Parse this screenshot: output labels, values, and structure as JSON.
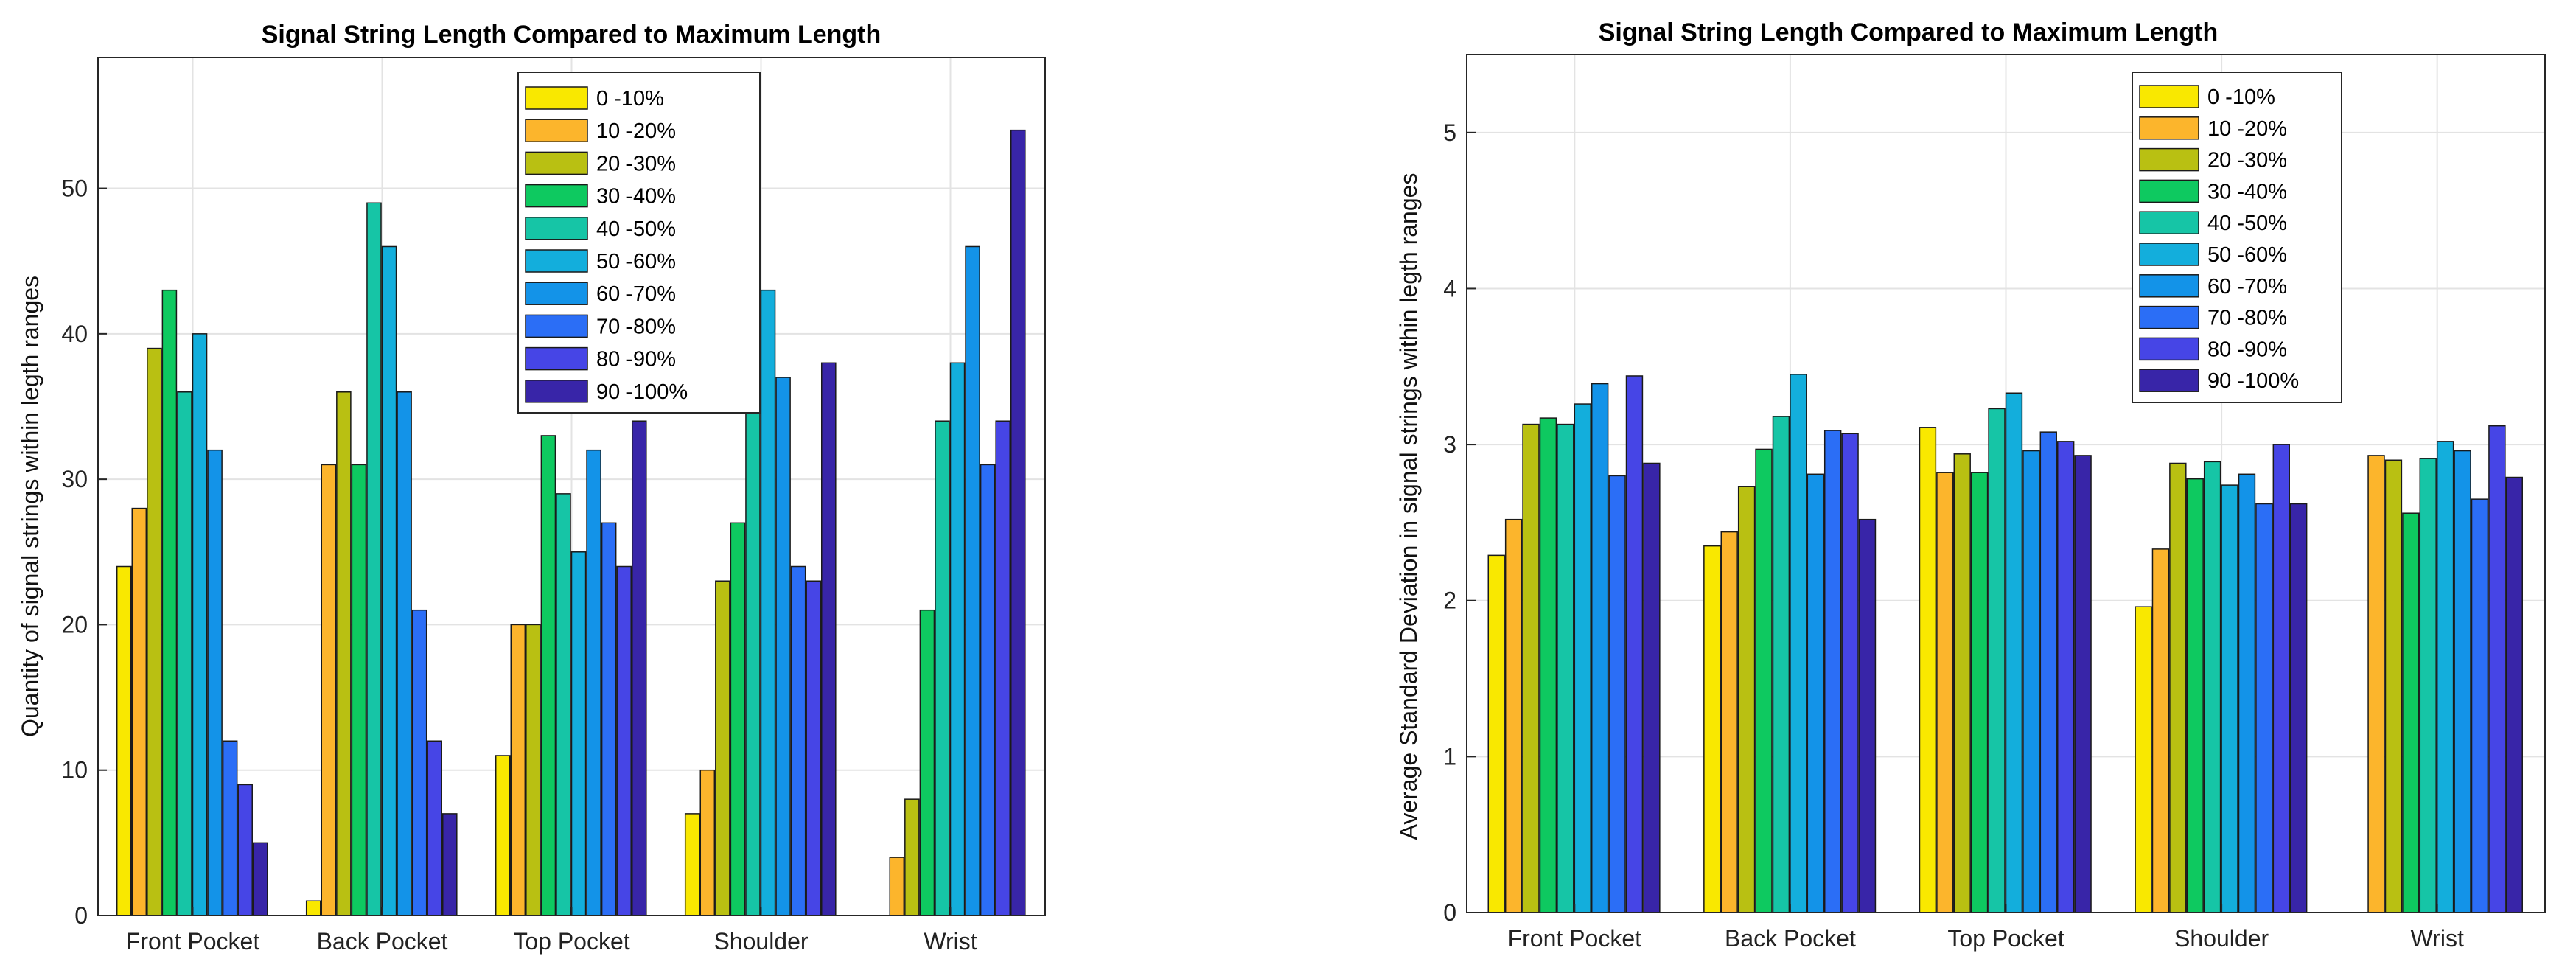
{
  "legend_labels": [
    "0 -10%",
    "10 -20%",
    "20 -30%",
    "30 -40%",
    "40 -50%",
    "50 -60%",
    "60 -70%",
    "70 -80%",
    "80 -90%",
    "90 -100%"
  ],
  "series_colors": [
    "#f9e800",
    "#fcb52c",
    "#b9c012",
    "#0ec960",
    "#16c5a6",
    "#13aedc",
    "#1393e8",
    "#2b6ef6",
    "#4645e6",
    "#3825a8"
  ],
  "chart_data": [
    {
      "type": "bar",
      "title": "Signal String Length Compared to Maximum Length",
      "xlabel": "",
      "ylabel": "Quantity of signal strings within legth ranges",
      "ylim": [
        0,
        59
      ],
      "yticks": [
        0,
        10,
        20,
        30,
        40,
        50
      ],
      "grid": true,
      "legend_position": "top-center",
      "categories": [
        "Front Pocket",
        "Back Pocket",
        "Top Pocket",
        "Shoulder",
        "Wrist"
      ],
      "series": [
        {
          "name": "0 -10%",
          "values": [
            24,
            1,
            11,
            7,
            0
          ]
        },
        {
          "name": "10 -20%",
          "values": [
            28,
            31,
            20,
            10,
            4
          ]
        },
        {
          "name": "20 -30%",
          "values": [
            39,
            36,
            20,
            23,
            8
          ]
        },
        {
          "name": "30 -40%",
          "values": [
            43,
            31,
            33,
            27,
            21
          ]
        },
        {
          "name": "40 -50%",
          "values": [
            36,
            49,
            29,
            38,
            34
          ]
        },
        {
          "name": "50 -60%",
          "values": [
            40,
            46,
            25,
            43,
            38
          ]
        },
        {
          "name": "60 -70%",
          "values": [
            32,
            36,
            32,
            37,
            46
          ]
        },
        {
          "name": "70 -80%",
          "values": [
            12,
            21,
            27,
            24,
            31
          ]
        },
        {
          "name": "80 -90%",
          "values": [
            9,
            12,
            24,
            23,
            34
          ]
        },
        {
          "name": "90 -100%",
          "values": [
            5,
            7,
            34,
            38,
            54
          ]
        }
      ]
    },
    {
      "type": "bar",
      "title": "Signal String Length Compared to Maximum Length",
      "xlabel": "",
      "ylabel": "Average Standard Deviation in signal strings within legth ranges",
      "ylim": [
        0,
        5.5
      ],
      "yticks": [
        0,
        1,
        2,
        3,
        4,
        5
      ],
      "grid": true,
      "legend_position": "top-right",
      "categories": [
        "Front Pocket",
        "Back Pocket",
        "Top Pocket",
        "Shoulder",
        "Wrist"
      ],
      "series": [
        {
          "name": "0 -10%",
          "values": [
            2.29,
            2.35,
            3.11,
            1.96,
            0
          ]
        },
        {
          "name": "10 -20%",
          "values": [
            2.52,
            2.44,
            2.82,
            2.33,
            2.93
          ]
        },
        {
          "name": "20 -30%",
          "values": [
            3.13,
            2.73,
            2.94,
            2.88,
            2.9
          ]
        },
        {
          "name": "30 -40%",
          "values": [
            3.17,
            2.97,
            2.82,
            2.78,
            2.56
          ]
        },
        {
          "name": "40 -50%",
          "values": [
            3.13,
            3.18,
            3.23,
            2.89,
            2.91
          ]
        },
        {
          "name": "50 -60%",
          "values": [
            3.26,
            3.45,
            3.33,
            2.74,
            3.02
          ]
        },
        {
          "name": "60 -70%",
          "values": [
            3.39,
            2.81,
            2.96,
            2.81,
            2.96
          ]
        },
        {
          "name": "70 -80%",
          "values": [
            2.8,
            3.09,
            3.08,
            2.62,
            2.65
          ]
        },
        {
          "name": "80 -90%",
          "values": [
            3.44,
            3.07,
            3.02,
            3.0,
            3.12
          ]
        },
        {
          "name": "90 -100%",
          "values": [
            2.88,
            2.52,
            2.93,
            2.62,
            2.79
          ]
        }
      ]
    }
  ]
}
